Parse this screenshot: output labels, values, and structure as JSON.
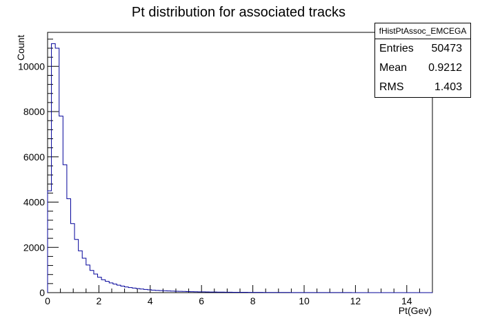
{
  "chart_data": {
    "type": "histogram",
    "title": "Pt distribution for associated tracks",
    "xlabel": "Pt(Gev)",
    "ylabel": "Count",
    "xlim": [
      0,
      15
    ],
    "ylim": [
      0,
      11500
    ],
    "xticks": [
      0,
      2,
      4,
      6,
      8,
      10,
      12,
      14
    ],
    "yticks": [
      0,
      2000,
      4000,
      6000,
      8000,
      10000
    ],
    "bin_width": 0.15,
    "bin_start": 0,
    "values": [
      4500,
      11000,
      10800,
      7800,
      5650,
      4150,
      3050,
      2350,
      1850,
      1520,
      1220,
      980,
      820,
      680,
      570,
      500,
      430,
      380,
      330,
      290,
      250,
      225,
      200,
      180,
      160,
      140,
      125,
      112,
      100,
      92,
      83,
      75,
      68,
      62,
      57,
      52,
      47,
      43,
      39,
      36,
      33,
      30,
      28,
      26,
      24,
      22,
      20,
      18,
      17,
      16,
      15,
      14,
      13,
      12,
      11,
      10,
      9,
      8,
      8,
      7,
      7,
      6,
      6,
      5,
      5,
      5,
      4,
      4,
      4,
      3,
      3,
      3,
      3,
      2,
      2,
      2,
      2,
      2,
      2,
      1,
      1,
      1,
      1,
      1,
      1,
      1,
      1,
      1,
      1,
      1,
      1,
      1,
      1,
      1,
      1,
      1,
      1,
      1,
      1,
      1
    ],
    "line_color": "#000099",
    "grid": false,
    "legend": "none"
  },
  "stats": {
    "name": "fHistPtAssoc_EMCEGA",
    "rows": [
      {
        "label": "Entries",
        "value": "50473"
      },
      {
        "label": "Mean",
        "value": "0.9212"
      },
      {
        "label": "RMS",
        "value": "1.403"
      }
    ]
  }
}
